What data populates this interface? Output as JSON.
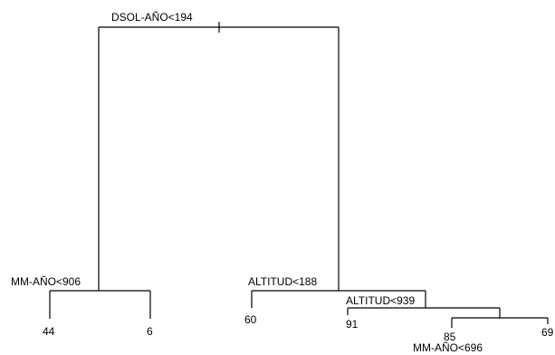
{
  "tree": {
    "root_split": "DSOL-AÑO<194",
    "left_split": "MM-AÑO<906",
    "right_split": "ALTITUD<188",
    "right_right_split": "ALTITUD<939",
    "deep_split": "MM-AÑO<696",
    "leaves": {
      "left_left": "44",
      "left_right": "6",
      "right_left": "60",
      "right_right_left": "91",
      "deep_left": "85",
      "deep_right": "69"
    }
  }
}
